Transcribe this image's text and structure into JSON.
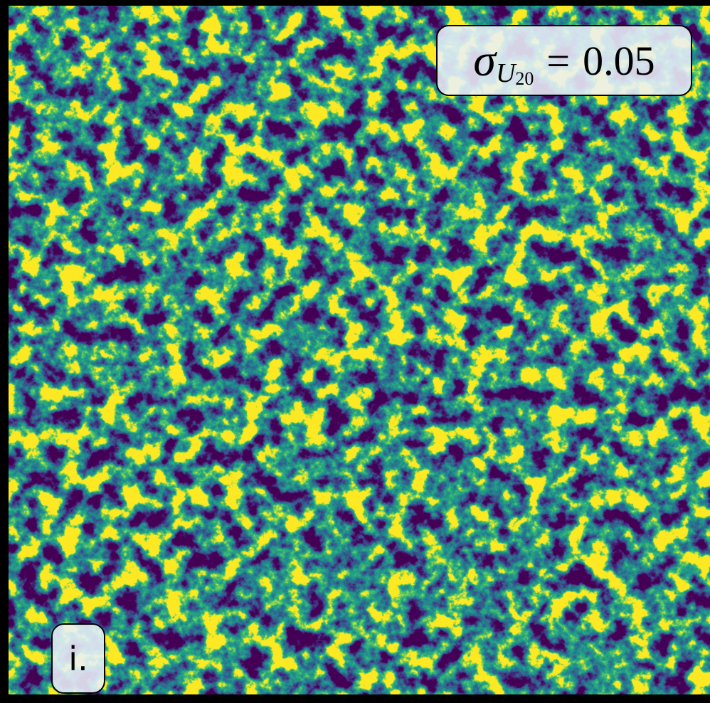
{
  "panel_label": "i.",
  "annotation": {
    "symbol": "σ",
    "subscript": "U",
    "subsubscript": "20",
    "relation": "=",
    "value": "0.05"
  }
}
